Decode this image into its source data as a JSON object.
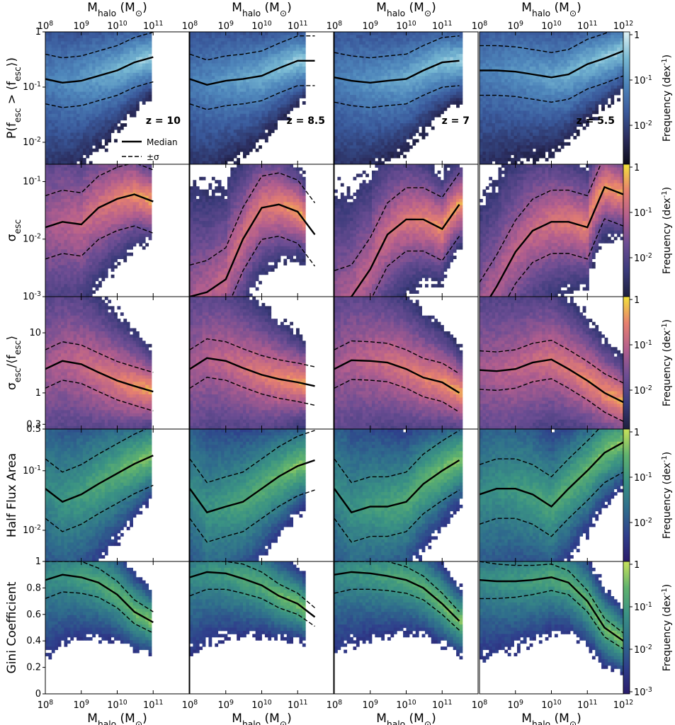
{
  "figure": {
    "halo_label": "M_halo (M_⊙)",
    "x_ticks": [
      "10^8",
      "10^9",
      "10^10",
      "10^11",
      "10^12"
    ],
    "legend": {
      "median": "Median",
      "sigma": "±σ"
    },
    "panel_labels": [
      "z = 10",
      "z = 8.5",
      "z = 7",
      "z = 5.5"
    ],
    "colorbar_label": "Frequency (dex^-1)"
  },
  "rows": [
    {
      "key": "pfesc",
      "ylabel": "P(f_esc > ⟨f_esc⟩)",
      "cmap": [
        "#0c0b1a",
        "#2b2d5e",
        "#3a5a9c",
        "#4e86bb",
        "#78b9d3",
        "#dff3f6"
      ],
      "colorbar_ticks": [
        "1",
        "10^-1",
        "10^-2"
      ],
      "y_ticks": [
        {
          "v": 1,
          "label": "1"
        },
        {
          "v": 0.1,
          "label": "10^-1"
        },
        {
          "v": 0.01,
          "label": "10^-2"
        }
      ],
      "ylim": [
        0.004,
        1
      ]
    },
    {
      "key": "sigma",
      "ylabel": "σ_esc",
      "cmap": [
        "#1d1f3d",
        "#3b3b7b",
        "#6c4d93",
        "#b25e8e",
        "#e7806f",
        "#f3e23a"
      ],
      "colorbar_ticks": [
        "1",
        "10^-1",
        "10^-2"
      ],
      "y_ticks": [
        {
          "v": 0.1,
          "label": "10^-1"
        },
        {
          "v": 0.01,
          "label": "10^-2"
        },
        {
          "v": 0.001,
          "label": "10^-3"
        }
      ],
      "ylim": [
        0.001,
        0.2
      ]
    },
    {
      "key": "sigma_norm",
      "ylabel": "σ_esc/⟨f_esc⟩",
      "cmap": [
        "#1d1f3d",
        "#3b3b7b",
        "#6c4d93",
        "#b25e8e",
        "#e7806f",
        "#f3e23a"
      ],
      "colorbar_ticks": [
        "1",
        "10^-1",
        "10^-2"
      ],
      "y_ticks": [
        {
          "v": 10,
          "label": "10"
        },
        {
          "v": 1,
          "label": "1"
        },
        {
          "v": 0.3,
          "label": "0.3"
        }
      ],
      "ylim": [
        0.25,
        40
      ]
    },
    {
      "key": "half_flux",
      "ylabel": "Half Flux Area",
      "cmap": [
        "#2a1c6b",
        "#2f3f8c",
        "#2f6d8c",
        "#3a9284",
        "#5fb26e",
        "#c8e25a"
      ],
      "colorbar_ticks": [
        "1",
        "10^-1",
        "10^-2"
      ],
      "y_ticks": [
        {
          "v": 0.5,
          "label": "0.5"
        },
        {
          "v": 0.1,
          "label": "10^-1"
        },
        {
          "v": 0.01,
          "label": "10^-2"
        }
      ],
      "ylim": [
        0.003,
        0.5
      ]
    },
    {
      "key": "gini",
      "ylabel": "Gini Coefficient",
      "cmap": [
        "#2a1c6b",
        "#2f3f8c",
        "#2f6d8c",
        "#3a9284",
        "#5fb26e",
        "#c8e25a"
      ],
      "colorbar_ticks": [
        "1",
        "10^-1",
        "10^-2",
        "10^-3"
      ],
      "y_ticks": [
        {
          "v": 1,
          "label": "1"
        },
        {
          "v": 0.8,
          "label": "0.8"
        },
        {
          "v": 0.6,
          "label": "0.6"
        },
        {
          "v": 0.4,
          "label": "0.4"
        },
        {
          "v": 0.2,
          "label": "0.2"
        },
        {
          "v": 0,
          "label": "0"
        }
      ],
      "ylim": [
        0,
        1
      ]
    }
  ],
  "chart_data": {
    "type": "heatmap",
    "x_scale": "log",
    "x_unit": "M_⊙",
    "xlim": [
      100000000.0,
      1000000000000.0
    ],
    "panels_x_max": [
      80000000000.0,
      150000000000.0,
      350000000000.0,
      1000000000000.0
    ],
    "columns": [
      "z = 10",
      "z = 8.5",
      "z = 7",
      "z = 5.5"
    ],
    "x": [
      100000000.0,
      300000000.0,
      1000000000.0,
      3000000000.0,
      10000000000.0,
      30000000000.0,
      100000000000.0,
      300000000000.0,
      1000000000000.0
    ],
    "median": {
      "pfesc": [
        [
          0.14,
          0.12,
          0.13,
          0.16,
          0.2,
          0.28,
          0.35
        ],
        [
          0.14,
          0.11,
          0.13,
          0.14,
          0.16,
          0.22,
          0.3,
          0.3
        ],
        [
          0.15,
          0.13,
          0.12,
          0.13,
          0.14,
          0.2,
          0.28,
          0.3
        ],
        [
          0.2,
          0.2,
          0.19,
          0.17,
          0.15,
          0.17,
          0.26,
          0.33,
          0.45
        ]
      ],
      "sigma": [
        [
          0.016,
          0.02,
          0.018,
          0.035,
          0.05,
          0.06,
          0.045
        ],
        [
          0.001,
          0.0012,
          0.002,
          0.01,
          0.035,
          0.04,
          0.03,
          0.012
        ],
        [
          0.0008,
          0.001,
          0.003,
          0.012,
          0.022,
          0.022,
          0.015,
          0.04
        ],
        [
          0.0005,
          0.0015,
          0.006,
          0.014,
          0.02,
          0.02,
          0.016,
          0.08,
          0.06
        ]
      ],
      "sigma_norm": [
        [
          2.5,
          3.4,
          3.0,
          2.2,
          1.6,
          1.3,
          1.05
        ],
        [
          2.5,
          3.8,
          3.4,
          2.6,
          2.0,
          1.7,
          1.5,
          1.3
        ],
        [
          2.5,
          3.5,
          3.4,
          3.2,
          2.5,
          1.8,
          1.5,
          1.0
        ],
        [
          2.4,
          2.3,
          2.5,
          3.2,
          3.6,
          2.5,
          1.6,
          1.0,
          0.7
        ]
      ],
      "half_flux": [
        [
          0.05,
          0.03,
          0.04,
          0.06,
          0.09,
          0.13,
          0.18
        ],
        [
          0.05,
          0.02,
          0.025,
          0.03,
          0.05,
          0.08,
          0.12,
          0.15
        ],
        [
          0.05,
          0.02,
          0.025,
          0.025,
          0.03,
          0.06,
          0.1,
          0.15
        ],
        [
          0.04,
          0.05,
          0.05,
          0.04,
          0.025,
          0.05,
          0.1,
          0.2,
          0.3
        ]
      ],
      "gini": [
        [
          0.86,
          0.9,
          0.88,
          0.84,
          0.75,
          0.62,
          0.54
        ],
        [
          0.88,
          0.92,
          0.91,
          0.87,
          0.82,
          0.74,
          0.68,
          0.58
        ],
        [
          0.9,
          0.92,
          0.91,
          0.89,
          0.86,
          0.8,
          0.68,
          0.55
        ],
        [
          0.86,
          0.85,
          0.85,
          0.86,
          0.88,
          0.84,
          0.7,
          0.5,
          0.4
        ]
      ]
    },
    "sigma_band_dex": {
      "pfesc": 0.45,
      "sigma": 0.55,
      "sigma_norm": 0.32,
      "half_flux": 0.5,
      "gini": 0.1
    }
  }
}
